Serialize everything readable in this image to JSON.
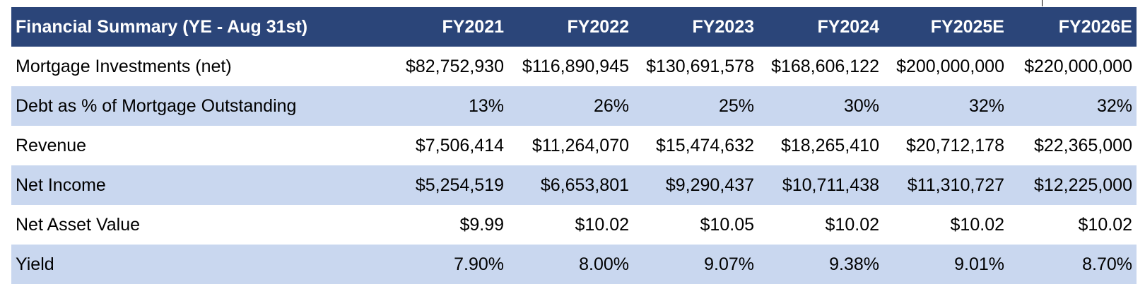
{
  "table": {
    "title": "Financial Summary (YE - Aug 31st)",
    "columns": [
      "FY2021",
      "FY2022",
      "FY2023",
      "FY2024",
      "FY2025E",
      "FY2026E"
    ],
    "rows": [
      {
        "label": "Mortgage Investments (net)",
        "values": [
          "$82,752,930",
          "$116,890,945",
          "$130,691,578",
          "$168,606,122",
          "$200,000,000",
          "$220,000,000"
        ]
      },
      {
        "label": "Debt as % of Mortgage Outstanding",
        "values": [
          "13%",
          "26%",
          "25%",
          "30%",
          "32%",
          "32%"
        ]
      },
      {
        "label": "Revenue",
        "values": [
          "$7,506,414",
          "$11,264,070",
          "$15,474,632",
          "$18,265,410",
          "$20,712,178",
          "$22,365,000"
        ]
      },
      {
        "label": "Net Income",
        "values": [
          "$5,254,519",
          "$6,653,801",
          "$9,290,437",
          "$10,711,438",
          "$11,310,727",
          "$12,225,000"
        ]
      },
      {
        "label": "Net Asset Value",
        "values": [
          "$9.99",
          "$10.02",
          "$10.05",
          "$10.02",
          "$10.02",
          "$10.02"
        ]
      },
      {
        "label": "Yield",
        "values": [
          "7.90%",
          "8.00%",
          "9.07%",
          "9.38%",
          "9.01%",
          "8.70%"
        ]
      }
    ]
  },
  "colors": {
    "header_bg": "#2b4579",
    "header_text": "#ffffff",
    "band_bg": "#c9d7ef",
    "row_bg": "#ffffff"
  }
}
